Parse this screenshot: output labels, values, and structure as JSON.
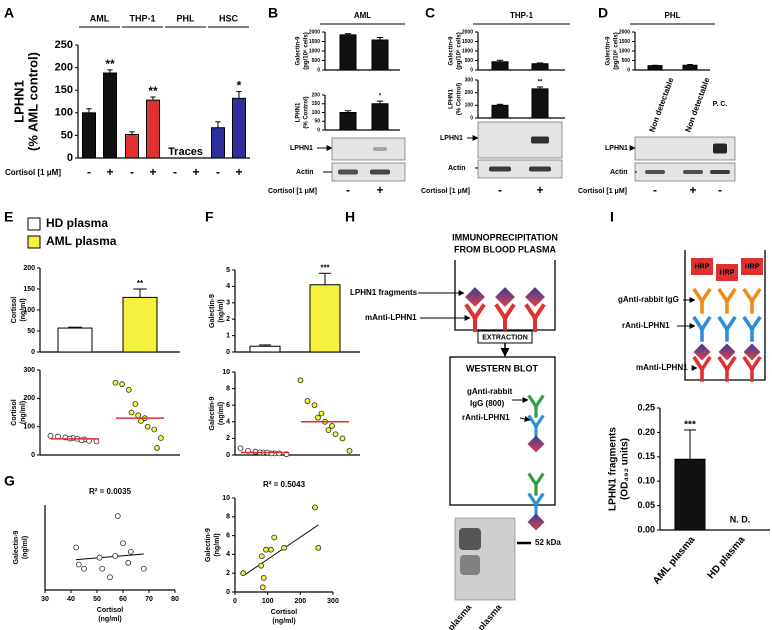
{
  "panels": {
    "A": {
      "label": "A"
    },
    "B": {
      "label": "B",
      "title": "AML",
      "blot_labels": [
        "LPHN1",
        "Actin"
      ],
      "condition": "Cortisol [1 μM]",
      "signs": [
        "-",
        "+"
      ]
    },
    "C": {
      "label": "C",
      "title": "THP-1",
      "blot_labels": [
        "LPHN1",
        "Actin"
      ],
      "condition": "Cortisol [1 μM]",
      "signs": [
        "-",
        "+"
      ]
    },
    "D": {
      "label": "D",
      "title": "PHL",
      "notes": [
        "Non detectable",
        "Non detectable",
        "P. C."
      ],
      "blot_labels": [
        "LPHN1",
        "Actin"
      ],
      "condition": "Cortisol [1 μM]",
      "signs": [
        "-",
        "+",
        "-"
      ]
    },
    "E": {
      "label": "E"
    },
    "F": {
      "label": "F"
    },
    "G": {
      "label": "G"
    },
    "H": {
      "label": "H",
      "title": [
        "IMMUNOPRECIPITATION",
        "FROM BLOOD PLASMA"
      ],
      "labels": [
        "LPHN1 fragments",
        "mAnti-LPHN1"
      ],
      "step": "EXTRACTION",
      "blot_title": "WESTERN BLOT",
      "blot_labels": [
        "gAnti-rabbit",
        "IgG (800)",
        "rAnti-LPHN1"
      ],
      "marker": "52 kDa",
      "lanes": [
        "AML plasma",
        "HD plasma"
      ]
    },
    "I": {
      "label": "I",
      "labels": [
        "gAnti-rabbit IgG",
        "rAnti-LPHN1",
        "mAnti-LPHN1"
      ],
      "tags": [
        "HRP",
        "HRP",
        "HRP"
      ]
    }
  },
  "chart_data": [
    {
      "type": "bar",
      "ylabel": [
        "LPHN1",
        "(% AML control)"
      ],
      "xlabel": "Cortisol [1 μM]",
      "groups": [
        {
          "name": "AML"
        },
        {
          "name": "THP-1"
        },
        {
          "name": "PHL",
          "note": "Traces"
        },
        {
          "name": "HSC"
        }
      ],
      "categories": [
        "-",
        "+",
        "-",
        "+",
        "-",
        "+",
        "-",
        "+"
      ],
      "values": [
        100,
        188,
        52,
        128,
        null,
        null,
        67,
        132
      ],
      "errors": [
        9,
        7,
        6,
        7,
        null,
        null,
        13,
        15
      ],
      "significance": [
        null,
        "**",
        null,
        "**",
        null,
        null,
        null,
        "*"
      ],
      "colors": [
        "#111111",
        "#111111",
        "#e03131",
        "#e03131",
        null,
        null,
        "#2e2e9c",
        "#2e2e9c"
      ],
      "ylim": [
        0,
        250
      ],
      "yticks": [
        0,
        50,
        100,
        150,
        200,
        250
      ]
    },
    {
      "type": "bar",
      "ylabel": [
        "Galectin-9",
        "(pg/10⁶ cells)"
      ],
      "values": [
        1850,
        1580
      ],
      "errors": [
        60,
        130
      ],
      "color": "#111111",
      "ylim": [
        0,
        2000
      ],
      "yticks": [
        0,
        500,
        1000,
        1500,
        2000
      ]
    },
    {
      "type": "bar",
      "ylabel": [
        "LPHN1",
        "(% Control)"
      ],
      "values": [
        100,
        150
      ],
      "errors": [
        10,
        15
      ],
      "significance": [
        null,
        "*"
      ],
      "color": "#111111",
      "ylim": [
        0,
        200
      ],
      "yticks": [
        0,
        50,
        100,
        150,
        200
      ]
    },
    {
      "type": "bar",
      "ylabel": [
        "Galectin-9",
        "(pg/10⁶ cells)"
      ],
      "values": [
        430,
        330
      ],
      "errors": [
        80,
        40
      ],
      "color": "#111111",
      "ylim": [
        0,
        2000
      ],
      "yticks": [
        0,
        500,
        1000,
        1500,
        2000
      ]
    },
    {
      "type": "bar",
      "ylabel": [
        "LPHN1",
        "(% Control)"
      ],
      "values": [
        100,
        230
      ],
      "errors": [
        8,
        15
      ],
      "significance": [
        null,
        "**"
      ],
      "color": "#111111",
      "ylim": [
        0,
        300
      ],
      "yticks": [
        0,
        100,
        200,
        300
      ]
    },
    {
      "type": "bar",
      "ylabel": [
        "Galectin-9",
        "(pg/10⁶ cells)"
      ],
      "values": [
        230,
        250
      ],
      "errors": [
        20,
        40
      ],
      "color": "#111111",
      "ylim": [
        0,
        2000
      ],
      "yticks": [
        0,
        500,
        1000,
        1500,
        2000
      ]
    },
    {
      "type": "bar",
      "ylabel": [
        "Cortisol",
        "(ng/ml)"
      ],
      "values": [
        57,
        130
      ],
      "errors": [
        2,
        20
      ],
      "significance": [
        null,
        "**"
      ],
      "colors": [
        "#ffffff",
        "#f4f23c"
      ],
      "ylim": [
        0,
        200
      ],
      "yticks": [
        0,
        50,
        100,
        150,
        200
      ]
    },
    {
      "type": "strip",
      "ylabel": [
        "Cortisol",
        "(ng/ml)"
      ],
      "groups": [
        {
          "name": "HD plasma",
          "color": "#ffffff",
          "values": [
            68,
            65,
            62,
            60,
            58,
            57,
            55,
            52,
            50,
            48
          ],
          "median": 57
        },
        {
          "name": "AML plasma",
          "color": "#f4f23c",
          "values": [
            255,
            250,
            230,
            180,
            150,
            140,
            130,
            120,
            100,
            90,
            60,
            25
          ],
          "median": 130
        }
      ],
      "median_color": "#e03131",
      "ylim": [
        0,
        300
      ],
      "yticks": [
        0,
        100,
        200,
        300
      ]
    },
    {
      "type": "bar",
      "ylabel": [
        "Galectin-9",
        "(ng/ml)"
      ],
      "values": [
        0.35,
        4.1
      ],
      "errors": [
        0.08,
        0.7
      ],
      "significance": [
        null,
        "***"
      ],
      "colors": [
        "#ffffff",
        "#f4f23c"
      ],
      "ylim": [
        0,
        5
      ],
      "yticks": [
        0,
        1,
        2,
        3,
        4,
        5
      ]
    },
    {
      "type": "strip",
      "ylabel": [
        "Galectin-9",
        "(ng/ml)"
      ],
      "groups": [
        {
          "name": "HD plasma",
          "color": "#ffffff",
          "values": [
            0.8,
            0.5,
            0.4,
            0.3,
            0.3,
            0.3,
            0.2,
            0.2,
            0.2,
            0.1
          ],
          "median": 0.3
        },
        {
          "name": "AML plasma",
          "color": "#f4f23c",
          "values": [
            9,
            6.5,
            6,
            5,
            4.5,
            4,
            3.5,
            3,
            2.5,
            2,
            0.5
          ],
          "median": 4
        }
      ],
      "median_color": "#e03131",
      "ylim": [
        0,
        10
      ],
      "yticks": [
        0,
        2,
        4,
        6,
        8,
        10
      ]
    },
    {
      "type": "scatter",
      "annotation": "R² = 0.0035",
      "xlabel": [
        "Cortisol",
        "(ng/ml)"
      ],
      "ylabel": [
        "Galectin-9",
        "(ng/ml)"
      ],
      "x": [
        42,
        43,
        45,
        51,
        52,
        55,
        57,
        58,
        60,
        62,
        63,
        68
      ],
      "values": [
        0.5,
        0.3,
        0.25,
        0.38,
        0.25,
        0.15,
        0.4,
        0.87,
        0.55,
        0.32,
        0.45,
        0.25
      ],
      "color": "#ffffff",
      "xlim": [
        30,
        80
      ],
      "xticks": [
        30,
        40,
        50,
        60,
        70,
        80
      ],
      "ylim": [
        0,
        1
      ]
    },
    {
      "type": "scatter",
      "annotation": "R² = 0.5043",
      "xlabel": [
        "Cortisol",
        "(ng/ml)"
      ],
      "ylabel": [
        "Galectin-9",
        "(ng/ml)"
      ],
      "x": [
        25,
        80,
        82,
        85,
        88,
        95,
        110,
        120,
        150,
        245,
        255
      ],
      "values": [
        2,
        2.8,
        3.8,
        0.5,
        1.5,
        4.5,
        4.5,
        5.8,
        4.7,
        9,
        4.7
      ],
      "color": "#f4f23c",
      "xlim": [
        0,
        300
      ],
      "xticks": [
        0,
        100,
        200,
        300
      ],
      "ylim": [
        0,
        10
      ],
      "yticks": [
        0,
        2,
        4,
        6,
        8,
        10
      ]
    },
    {
      "type": "bar",
      "ylabel": [
        "LPHN1 fragments",
        "(OD₄₉₂ units)"
      ],
      "categories": [
        "AML plasma",
        "HD plasma"
      ],
      "values": [
        0.145,
        null
      ],
      "errors": [
        0.06,
        null
      ],
      "significance": [
        "***",
        null
      ],
      "notes": [
        null,
        "N. D."
      ],
      "color": "#111111",
      "ylim": [
        0,
        0.25
      ],
      "yticks": [
        {
          "value": 0,
          "label": "0.00"
        },
        0.05,
        {
          "value": 0.1,
          "label": "0.10"
        },
        0.15,
        {
          "value": 0.2,
          "label": "0.20"
        },
        0.25
      ]
    }
  ]
}
